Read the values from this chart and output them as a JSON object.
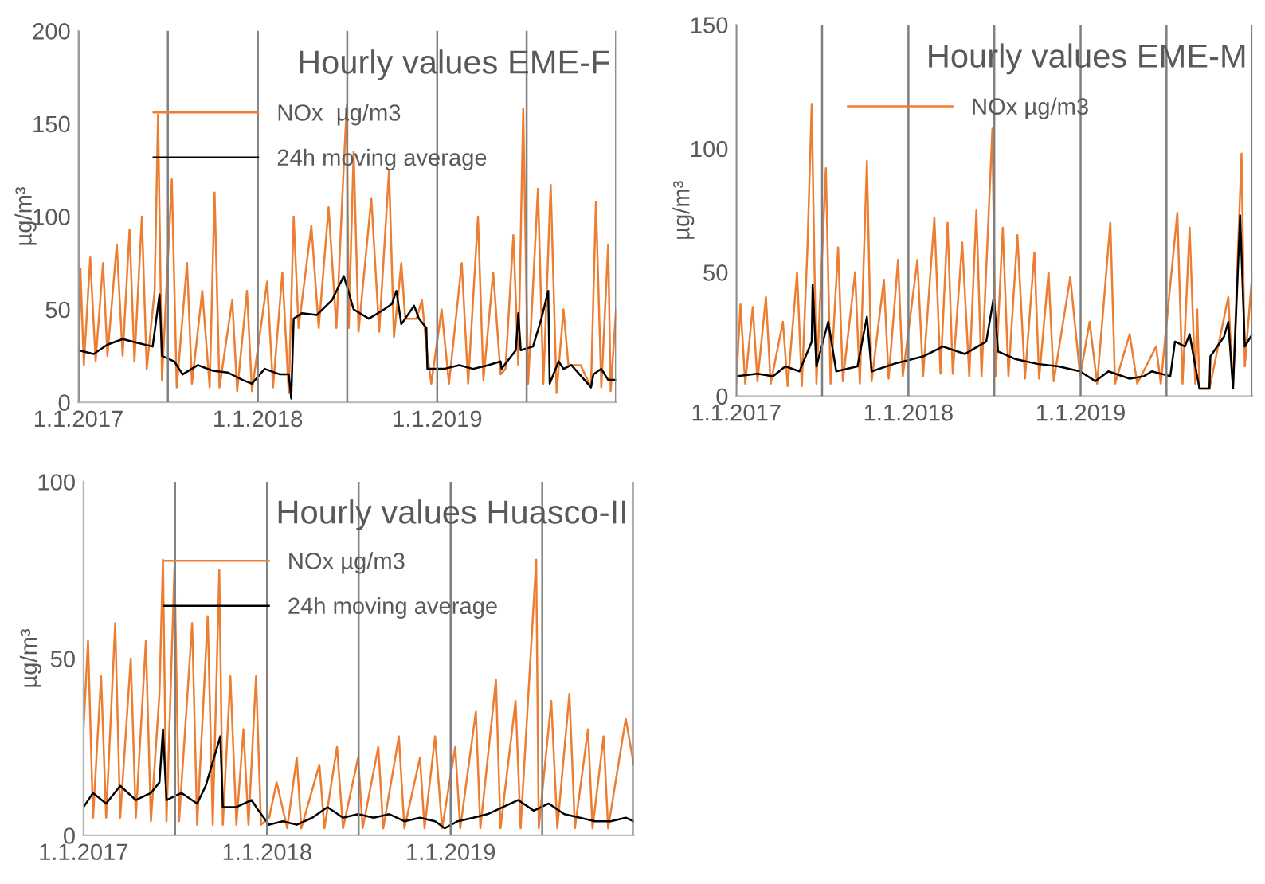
{
  "chart_data": [
    {
      "type": "line",
      "title": "Hourly values EME-F",
      "ylabel": "µg/m³",
      "xlim": [
        "2017-01-01",
        "2019-12-31"
      ],
      "ylim": [
        0,
        200
      ],
      "yticks": [
        0,
        50,
        100,
        150,
        200
      ],
      "xticks": [
        {
          "value": "2017-01-01",
          "label": "1.1.2017"
        },
        {
          "value": "2017-07-02",
          "label": null
        },
        {
          "value": "2018-01-01",
          "label": "1.1.2018"
        },
        {
          "value": "2018-07-02",
          "label": null
        },
        {
          "value": "2019-01-01",
          "label": "1.1.2019"
        },
        {
          "value": "2019-07-02",
          "label": null
        },
        {
          "value": "2019-12-31",
          "label": null
        }
      ],
      "grid": "x",
      "legend": "top",
      "series": [
        {
          "name": "NOx  µg/m3",
          "color": "#ed7d31",
          "x": [
            "2017-01-01",
            "2017-01-05",
            "2017-01-12",
            "2017-01-25",
            "2017-02-05",
            "2017-02-20",
            "2017-03-01",
            "2017-03-20",
            "2017-04-01",
            "2017-04-15",
            "2017-04-25",
            "2017-05-10",
            "2017-05-20",
            "2017-06-05",
            "2017-06-12",
            "2017-06-20",
            "2017-07-10",
            "2017-07-20",
            "2017-08-10",
            "2017-08-20",
            "2017-09-10",
            "2017-09-25",
            "2017-10-05",
            "2017-10-15",
            "2017-11-10",
            "2017-11-20",
            "2017-12-10",
            "2017-12-20",
            "2018-01-20",
            "2018-02-01",
            "2018-02-20",
            "2018-03-05",
            "2018-03-15",
            "2018-03-25",
            "2018-04-20",
            "2018-05-05",
            "2018-05-25",
            "2018-06-10",
            "2018-06-25",
            "2018-07-01",
            "2018-07-05",
            "2018-07-15",
            "2018-07-25",
            "2018-08-20",
            "2018-09-05",
            "2018-09-25",
            "2018-10-05",
            "2018-10-20",
            "2018-10-28",
            "2018-11-20",
            "2018-12-01",
            "2018-12-10",
            "2018-12-20",
            "2019-01-10",
            "2019-01-25",
            "2019-02-20",
            "2019-03-05",
            "2019-03-25",
            "2019-04-05",
            "2019-04-25",
            "2019-05-10",
            "2019-05-20",
            "2019-06-05",
            "2019-06-15",
            "2019-06-25",
            "2019-07-05",
            "2019-07-25",
            "2019-08-05",
            "2019-08-20",
            "2019-09-01",
            "2019-09-15",
            "2019-09-25",
            "2019-10-20",
            "2019-11-10",
            "2019-11-20",
            "2019-12-01",
            "2019-12-15",
            "2019-12-20",
            "2019-12-31"
          ],
          "values": [
            0,
            72,
            20,
            78,
            22,
            75,
            25,
            85,
            25,
            93,
            22,
            100,
            18,
            60,
            155,
            12,
            120,
            8,
            75,
            10,
            60,
            8,
            113,
            8,
            55,
            6,
            60,
            6,
            65,
            8,
            70,
            5,
            100,
            40,
            95,
            40,
            105,
            40,
            128,
            160,
            40,
            135,
            38,
            110,
            38,
            125,
            35,
            75,
            45,
            45,
            55,
            30,
            10,
            50,
            10,
            75,
            10,
            100,
            12,
            70,
            15,
            18,
            90,
            20,
            158,
            10,
            115,
            10,
            117,
            5,
            50,
            20,
            20,
            8,
            108,
            8,
            85,
            6,
            50
          ]
        },
        {
          "name": "24h moving average",
          "color": "#000000",
          "x": [
            "2017-01-01",
            "2017-02-01",
            "2017-03-01",
            "2017-04-01",
            "2017-05-01",
            "2017-06-01",
            "2017-06-15",
            "2017-06-20",
            "2017-07-15",
            "2017-08-01",
            "2017-09-01",
            "2017-10-01",
            "2017-11-01",
            "2017-12-01",
            "2017-12-20",
            "2018-01-15",
            "2018-02-15",
            "2018-03-05",
            "2018-03-10",
            "2018-03-15",
            "2018-04-01",
            "2018-05-01",
            "2018-06-01",
            "2018-06-25",
            "2018-07-15",
            "2018-08-15",
            "2018-09-15",
            "2018-10-01",
            "2018-10-10",
            "2018-10-20",
            "2018-11-15",
            "2018-11-25",
            "2018-12-10",
            "2018-12-12",
            "2019-01-15",
            "2019-02-15",
            "2019-03-15",
            "2019-04-15",
            "2019-05-10",
            "2019-05-12",
            "2019-06-10",
            "2019-06-15",
            "2019-06-20",
            "2019-07-15",
            "2019-08-01",
            "2019-08-15",
            "2019-08-18",
            "2019-09-05",
            "2019-09-15",
            "2019-10-01",
            "2019-11-10",
            "2019-11-15",
            "2019-12-01",
            "2019-12-15",
            "2019-12-31"
          ],
          "values": [
            28,
            26,
            31,
            34,
            32,
            30,
            58,
            25,
            22,
            15,
            20,
            17,
            16,
            12,
            10,
            18,
            15,
            15,
            2,
            45,
            48,
            47,
            55,
            68,
            50,
            45,
            50,
            53,
            60,
            42,
            52,
            45,
            40,
            18,
            18,
            20,
            18,
            20,
            22,
            18,
            28,
            48,
            28,
            30,
            45,
            60,
            10,
            22,
            18,
            20,
            8,
            15,
            18,
            12,
            12
          ]
        }
      ]
    },
    {
      "type": "line",
      "title": "Hourly values EME-M",
      "ylabel": "µg/m³",
      "xlim": [
        "2017-01-01",
        "2019-12-31"
      ],
      "ylim": [
        0,
        150
      ],
      "yticks": [
        0,
        50,
        100,
        150
      ],
      "xticks": [
        {
          "value": "2017-01-01",
          "label": "1.1.2017"
        },
        {
          "value": "2017-07-02",
          "label": null
        },
        {
          "value": "2018-01-01",
          "label": "1.1.2018"
        },
        {
          "value": "2018-07-02",
          "label": null
        },
        {
          "value": "2019-01-01",
          "label": "1.1.2019"
        },
        {
          "value": "2019-07-02",
          "label": null
        },
        {
          "value": "2019-12-31",
          "label": null
        }
      ],
      "grid": "x",
      "legend": "top",
      "series": [
        {
          "name": "NOx µg/m3",
          "color": "#ed7d31",
          "x": [
            "2017-01-01",
            "2017-01-10",
            "2017-01-20",
            "2017-02-05",
            "2017-02-15",
            "2017-03-05",
            "2017-03-15",
            "2017-04-10",
            "2017-04-20",
            "2017-05-10",
            "2017-05-20",
            "2017-06-01",
            "2017-06-10",
            "2017-06-20",
            "2017-07-10",
            "2017-07-20",
            "2017-08-05",
            "2017-08-15",
            "2017-09-10",
            "2017-09-20",
            "2017-10-05",
            "2017-10-15",
            "2017-11-10",
            "2017-11-20",
            "2017-12-10",
            "2017-12-20",
            "2018-01-20",
            "2018-02-01",
            "2018-02-25",
            "2018-03-10",
            "2018-03-25",
            "2018-04-05",
            "2018-04-25",
            "2018-05-10",
            "2018-05-25",
            "2018-06-05",
            "2018-06-28",
            "2018-07-05",
            "2018-07-20",
            "2018-08-01",
            "2018-08-20",
            "2018-09-05",
            "2018-09-25",
            "2018-10-05",
            "2018-10-25",
            "2018-11-05",
            "2018-12-10",
            "2018-12-31",
            "2019-01-20",
            "2019-02-05",
            "2019-03-05",
            "2019-03-15",
            "2019-04-15",
            "2019-05-01",
            "2019-06-10",
            "2019-06-20",
            "2019-07-10",
            "2019-07-25",
            "2019-08-05",
            "2019-08-20",
            "2019-09-01",
            "2019-09-05",
            "2019-09-10",
            "2019-10-01",
            "2019-11-10",
            "2019-11-20",
            "2019-12-08",
            "2019-12-15",
            "2019-12-31"
          ],
          "values": [
            5,
            37,
            5,
            36,
            6,
            40,
            5,
            30,
            4,
            50,
            4,
            60,
            118,
            5,
            92,
            5,
            60,
            6,
            50,
            5,
            95,
            6,
            47,
            7,
            55,
            8,
            55,
            8,
            72,
            9,
            70,
            9,
            62,
            8,
            75,
            8,
            108,
            8,
            68,
            8,
            65,
            7,
            58,
            7,
            50,
            6,
            48,
            8,
            30,
            5,
            70,
            5,
            25,
            5,
            20,
            5,
            45,
            74,
            5,
            68,
            5,
            35,
            3,
            3,
            40,
            3,
            98,
            12,
            50
          ]
        },
        {
          "color": "#000000",
          "x": [
            "2017-01-01",
            "2017-02-15",
            "2017-03-20",
            "2017-04-15",
            "2017-05-15",
            "2017-06-10",
            "2017-06-12",
            "2017-06-20",
            "2017-07-15",
            "2017-08-01",
            "2017-09-15",
            "2017-10-05",
            "2017-10-15",
            "2017-12-01",
            "2018-02-01",
            "2018-03-15",
            "2018-05-01",
            "2018-06-15",
            "2018-07-01",
            "2018-07-10",
            "2018-08-15",
            "2018-10-01",
            "2018-11-15",
            "2018-12-31",
            "2019-02-01",
            "2019-03-01",
            "2019-04-15",
            "2019-05-15",
            "2019-06-01",
            "2019-07-10",
            "2019-07-20",
            "2019-08-10",
            "2019-08-20",
            "2019-09-05",
            "2019-09-10",
            "2019-10-01",
            "2019-10-03",
            "2019-11-01",
            "2019-11-10",
            "2019-11-20",
            "2019-12-05",
            "2019-12-15",
            "2019-12-31"
          ],
          "values": [
            8,
            9,
            8,
            12,
            10,
            22,
            45,
            12,
            30,
            10,
            12,
            32,
            10,
            13,
            16,
            20,
            17,
            22,
            40,
            18,
            15,
            13,
            12,
            10,
            6,
            10,
            7,
            8,
            10,
            8,
            22,
            20,
            25,
            8,
            3,
            3,
            16,
            24,
            30,
            3,
            73,
            20,
            25
          ]
        }
      ]
    },
    {
      "type": "line",
      "title": "Hourly values Huasco-II",
      "ylabel": "µg/m³",
      "xlim": [
        "2017-01-01",
        "2019-12-31"
      ],
      "ylim": [
        0,
        100
      ],
      "yticks": [
        0,
        50,
        100
      ],
      "xticks": [
        {
          "value": "2017-01-01",
          "label": "1.1.2017"
        },
        {
          "value": "2017-07-02",
          "label": null
        },
        {
          "value": "2018-01-01",
          "label": "1.1.2018"
        },
        {
          "value": "2018-07-02",
          "label": null
        },
        {
          "value": "2019-01-01",
          "label": "1.1.2019"
        },
        {
          "value": "2019-07-02",
          "label": null
        },
        {
          "value": "2019-12-31",
          "label": null
        }
      ],
      "grid": "x",
      "legend": "top",
      "series": [
        {
          "name": "NOx µg/m3",
          "color": "#ed7d31",
          "x": [
            "2017-01-01",
            "2017-01-10",
            "2017-01-20",
            "2017-02-05",
            "2017-02-15",
            "2017-03-05",
            "2017-03-15",
            "2017-04-05",
            "2017-04-15",
            "2017-05-05",
            "2017-05-15",
            "2017-06-01",
            "2017-06-08",
            "2017-06-15",
            "2017-07-01",
            "2017-07-10",
            "2017-08-05",
            "2017-08-15",
            "2017-09-05",
            "2017-09-15",
            "2017-09-28",
            "2017-10-05",
            "2017-10-20",
            "2017-11-01",
            "2017-11-15",
            "2017-11-25",
            "2017-12-10",
            "2017-12-20",
            "2018-01-05",
            "2018-01-20",
            "2018-02-10",
            "2018-03-01",
            "2018-03-10",
            "2018-04-15",
            "2018-04-25",
            "2018-05-20",
            "2018-06-01",
            "2018-07-01",
            "2018-07-10",
            "2018-08-10",
            "2018-08-20",
            "2018-09-20",
            "2018-10-01",
            "2018-11-01",
            "2018-11-10",
            "2018-12-01",
            "2018-12-15",
            "2019-01-10",
            "2019-01-20",
            "2019-02-20",
            "2019-03-01",
            "2019-04-01",
            "2019-04-10",
            "2019-05-10",
            "2019-05-20",
            "2019-06-20",
            "2019-06-25",
            "2019-07-20",
            "2019-08-01",
            "2019-08-25",
            "2019-09-05",
            "2019-10-01",
            "2019-10-10",
            "2019-11-01",
            "2019-11-10",
            "2019-12-15",
            "2019-12-31"
          ],
          "values": [
            30,
            55,
            5,
            45,
            5,
            60,
            5,
            50,
            5,
            55,
            4,
            40,
            78,
            4,
            76,
            4,
            60,
            3,
            62,
            3,
            75,
            3,
            45,
            3,
            30,
            3,
            45,
            3,
            5,
            15,
            2,
            22,
            2,
            20,
            2,
            25,
            2,
            22,
            2,
            25,
            2,
            28,
            2,
            22,
            2,
            28,
            2,
            25,
            2,
            35,
            2,
            44,
            2,
            38,
            2,
            78,
            2,
            38,
            2,
            40,
            2,
            30,
            2,
            28,
            2,
            33,
            20
          ]
        },
        {
          "name": "24h moving average",
          "color": "#000000",
          "x": [
            "2017-01-01",
            "2017-01-20",
            "2017-02-15",
            "2017-03-15",
            "2017-04-15",
            "2017-05-15",
            "2017-06-01",
            "2017-06-08",
            "2017-06-15",
            "2017-07-15",
            "2017-08-15",
            "2017-09-01",
            "2017-09-30",
            "2017-10-05",
            "2017-11-01",
            "2017-12-01",
            "2017-12-15",
            "2018-01-05",
            "2018-02-01",
            "2018-03-01",
            "2018-04-01",
            "2018-05-01",
            "2018-06-01",
            "2018-07-01",
            "2018-08-01",
            "2018-09-01",
            "2018-10-01",
            "2018-11-01",
            "2018-12-01",
            "2018-12-20",
            "2019-01-15",
            "2019-02-15",
            "2019-03-15",
            "2019-04-15",
            "2019-05-15",
            "2019-06-15",
            "2019-07-15",
            "2019-08-15",
            "2019-09-15",
            "2019-10-15",
            "2019-11-15",
            "2019-12-15",
            "2019-12-31"
          ],
          "values": [
            8,
            12,
            9,
            14,
            10,
            12,
            15,
            30,
            10,
            12,
            9,
            14,
            28,
            8,
            8,
            10,
            7,
            3,
            4,
            3,
            5,
            8,
            5,
            6,
            5,
            6,
            4,
            5,
            4,
            2,
            4,
            5,
            6,
            8,
            10,
            7,
            9,
            6,
            5,
            4,
            4,
            5,
            4
          ]
        }
      ]
    }
  ]
}
